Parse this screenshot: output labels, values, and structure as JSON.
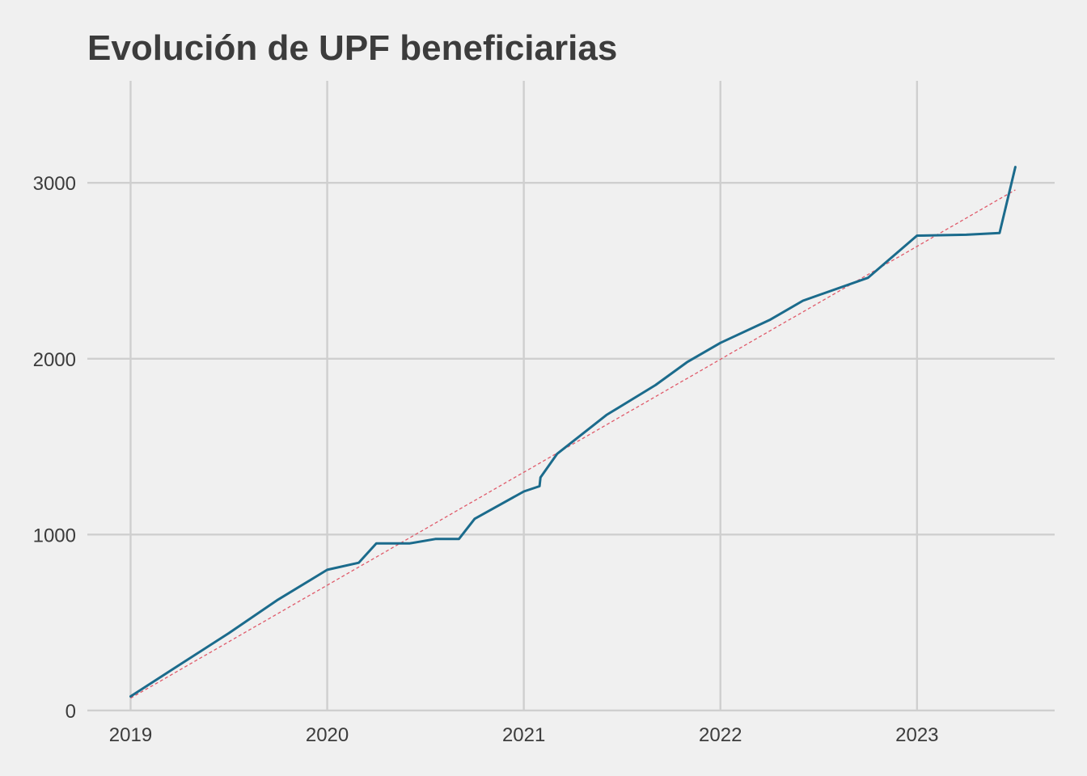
{
  "chart_data": {
    "type": "line",
    "title": "Evolución de UPF beneficiarias",
    "xlabel": "",
    "ylabel": "",
    "xlim": [
      2018.78,
      2023.7
    ],
    "ylim": [
      -5,
      3580
    ],
    "x_ticks": [
      "2019",
      "2020",
      "2021",
      "2022",
      "2023"
    ],
    "y_ticks": [
      "0",
      "1000",
      "2000",
      "3000"
    ],
    "grid": true,
    "legend": "none",
    "colors": {
      "line": "#1b6b8c",
      "trend": "#e05a6a",
      "background": "#f0f0f0",
      "grid": "#cfcfcf"
    },
    "series": [
      {
        "style": "solid",
        "points": [
          [
            2019.0,
            80
          ],
          [
            2019.25,
            260
          ],
          [
            2019.5,
            440
          ],
          [
            2019.75,
            630
          ],
          [
            2020.0,
            800
          ],
          [
            2020.16,
            840
          ],
          [
            2020.25,
            950
          ],
          [
            2020.42,
            950
          ],
          [
            2020.55,
            975
          ],
          [
            2020.67,
            975
          ],
          [
            2020.75,
            1090
          ],
          [
            2021.0,
            1245
          ],
          [
            2021.08,
            1275
          ],
          [
            2021.085,
            1325
          ],
          [
            2021.17,
            1460
          ],
          [
            2021.42,
            1680
          ],
          [
            2021.67,
            1850
          ],
          [
            2021.83,
            1980
          ],
          [
            2022.0,
            2090
          ],
          [
            2022.25,
            2220
          ],
          [
            2022.42,
            2330
          ],
          [
            2022.75,
            2460
          ],
          [
            2023.0,
            2700
          ],
          [
            2023.25,
            2705
          ],
          [
            2023.42,
            2715
          ],
          [
            2023.5,
            3090
          ]
        ]
      },
      {
        "style": "dashed",
        "points": [
          [
            2019.0,
            70
          ],
          [
            2023.5,
            2960
          ]
        ]
      }
    ]
  }
}
